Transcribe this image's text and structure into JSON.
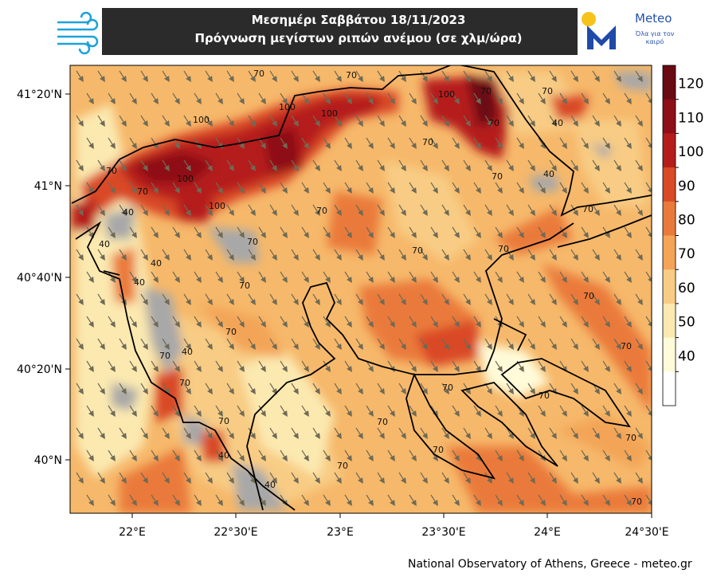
{
  "header": {
    "title_line1": "Μεσημέρι Σαββάτου 18/11/2023",
    "title_line2": "Πρόγνωση μεγίστων ριπών ανέμου (σε χλμ/ώρα)"
  },
  "logo": {
    "name": "Meteo",
    "tagline": "Όλα για τον καιρό",
    "icon": "sun-m-logo"
  },
  "wind_logo": {
    "icon": "wind-lines-icon"
  },
  "map": {
    "lat_labels": [
      "41°20'N",
      "41°N",
      "40°40'N",
      "40°20'N",
      "40°N"
    ],
    "lon_labels": [
      "22°E",
      "22°30'E",
      "23°E",
      "23°30'E",
      "24°E",
      "24°30'E"
    ],
    "contour_labels": [
      "70",
      "100",
      "100",
      "100",
      "100",
      "100",
      "100",
      "70",
      "70",
      "40",
      "40",
      "40",
      "40",
      "70",
      "70",
      "70",
      "70",
      "40",
      "40",
      "70",
      "70",
      "70",
      "70",
      "70",
      "70",
      "70",
      "70",
      "70",
      "70",
      "70",
      "40",
      "70",
      "70",
      "70",
      "70",
      "70",
      "70",
      "70",
      "40",
      "70",
      "40",
      "70",
      "70"
    ],
    "colors": {
      "grey": "#a8a8a8",
      "c40": "#fffbd9",
      "c50": "#fbe9b0",
      "c60": "#f8cc84",
      "c70": "#f3a457",
      "c80": "#ea7a3a",
      "c90": "#d94a26",
      "c100": "#b51d1c",
      "c110": "#8e0f18",
      "c120": "#6a0a12"
    }
  },
  "colorbar": {
    "ticks": [
      "120",
      "110",
      "100",
      "90",
      "80",
      "70",
      "60",
      "50",
      "40"
    ],
    "colors": [
      "#6a0a12",
      "#8e0f18",
      "#b51d1c",
      "#d94a26",
      "#ea7a3a",
      "#f3a457",
      "#f8cc84",
      "#fbe9b0",
      "#fffbd9",
      "#ffffff"
    ]
  },
  "credit": "National Observatory of Athens, Greece - meteo.gr"
}
